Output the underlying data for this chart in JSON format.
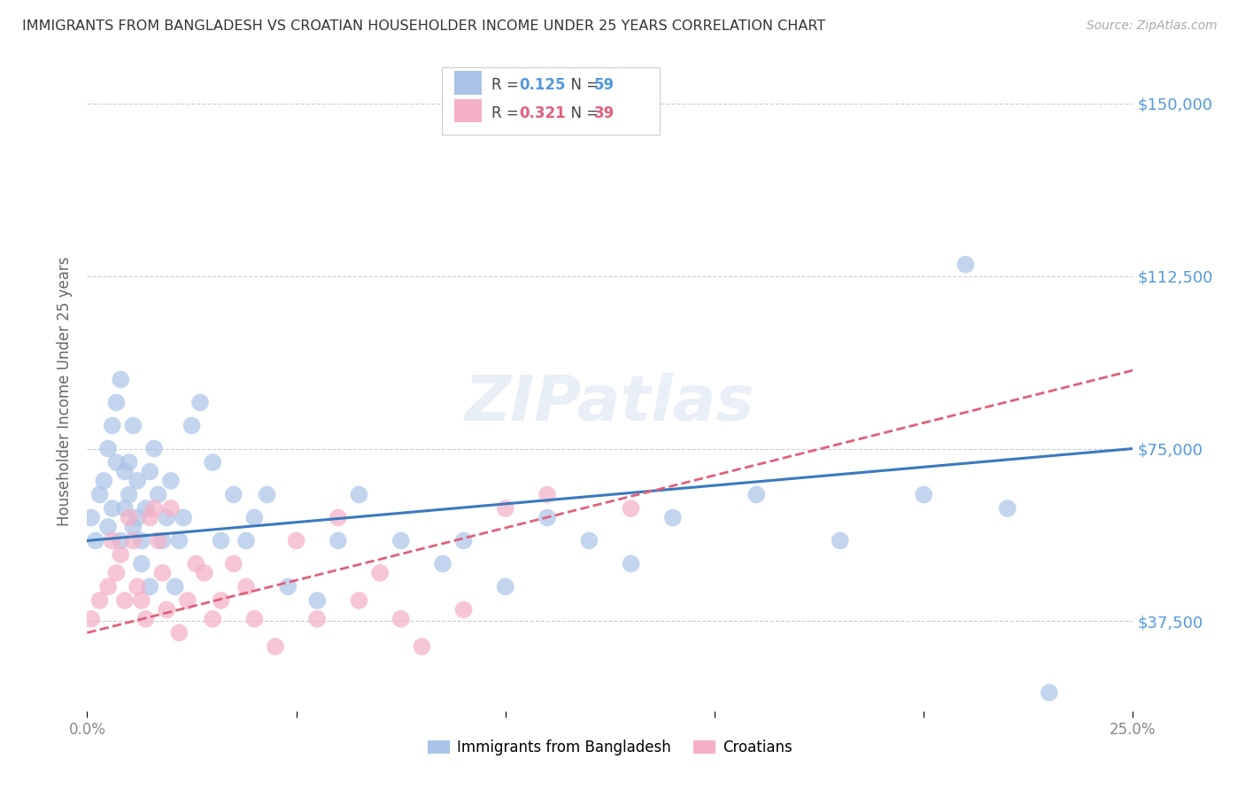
{
  "title": "IMMIGRANTS FROM BANGLADESH VS CROATIAN HOUSEHOLDER INCOME UNDER 25 YEARS CORRELATION CHART",
  "source": "Source: ZipAtlas.com",
  "ylabel": "Householder Income Under 25 years",
  "y_tick_labels": [
    "$150,000",
    "$112,500",
    "$75,000",
    "$37,500"
  ],
  "y_tick_values": [
    150000,
    112500,
    75000,
    37500
  ],
  "x_ticks": [
    0.0,
    0.05,
    0.1,
    0.15,
    0.2,
    0.25
  ],
  "x_tick_labels": [
    "0.0%",
    "",
    "",
    "",
    "",
    "25.0%"
  ],
  "x_min": 0.0,
  "x_max": 0.25,
  "y_min": 18000,
  "y_max": 157000,
  "series1_name": "Immigrants from Bangladesh",
  "series2_name": "Croatians",
  "series1_color": "#aac4e8",
  "series2_color": "#f5afc5",
  "line1_color": "#3a7abf",
  "line2_color": "#e0607a",
  "background_color": "#ffffff",
  "grid_color": "#cccccc",
  "title_color": "#333333",
  "right_yaxis_color": "#5599dd",
  "watermark_text": "ZIPatlas",
  "r1": "0.125",
  "n1": "59",
  "r2": "0.321",
  "n2": "39",
  "bangladesh_x": [
    0.001,
    0.002,
    0.003,
    0.004,
    0.005,
    0.005,
    0.006,
    0.006,
    0.007,
    0.007,
    0.008,
    0.008,
    0.009,
    0.009,
    0.01,
    0.01,
    0.011,
    0.011,
    0.012,
    0.012,
    0.013,
    0.013,
    0.014,
    0.015,
    0.015,
    0.016,
    0.017,
    0.018,
    0.019,
    0.02,
    0.021,
    0.022,
    0.023,
    0.025,
    0.027,
    0.03,
    0.032,
    0.035,
    0.038,
    0.04,
    0.043,
    0.048,
    0.055,
    0.06,
    0.065,
    0.075,
    0.085,
    0.09,
    0.1,
    0.11,
    0.12,
    0.13,
    0.14,
    0.16,
    0.18,
    0.2,
    0.21,
    0.22,
    0.23
  ],
  "bangladesh_y": [
    60000,
    55000,
    65000,
    68000,
    75000,
    58000,
    80000,
    62000,
    72000,
    85000,
    90000,
    55000,
    70000,
    62000,
    65000,
    72000,
    58000,
    80000,
    68000,
    60000,
    50000,
    55000,
    62000,
    70000,
    45000,
    75000,
    65000,
    55000,
    60000,
    68000,
    45000,
    55000,
    60000,
    80000,
    85000,
    72000,
    55000,
    65000,
    55000,
    60000,
    65000,
    45000,
    42000,
    55000,
    65000,
    55000,
    50000,
    55000,
    45000,
    60000,
    55000,
    50000,
    60000,
    65000,
    55000,
    65000,
    115000,
    62000,
    22000
  ],
  "croatian_x": [
    0.001,
    0.003,
    0.005,
    0.006,
    0.007,
    0.008,
    0.009,
    0.01,
    0.011,
    0.012,
    0.013,
    0.014,
    0.015,
    0.016,
    0.017,
    0.018,
    0.019,
    0.02,
    0.022,
    0.024,
    0.026,
    0.028,
    0.03,
    0.032,
    0.035,
    0.038,
    0.04,
    0.045,
    0.05,
    0.055,
    0.06,
    0.065,
    0.07,
    0.075,
    0.08,
    0.09,
    0.1,
    0.11,
    0.13
  ],
  "croatian_y": [
    38000,
    42000,
    45000,
    55000,
    48000,
    52000,
    42000,
    60000,
    55000,
    45000,
    42000,
    38000,
    60000,
    62000,
    55000,
    48000,
    40000,
    62000,
    35000,
    42000,
    50000,
    48000,
    38000,
    42000,
    50000,
    45000,
    38000,
    32000,
    55000,
    38000,
    60000,
    42000,
    48000,
    38000,
    32000,
    40000,
    62000,
    65000,
    62000
  ]
}
